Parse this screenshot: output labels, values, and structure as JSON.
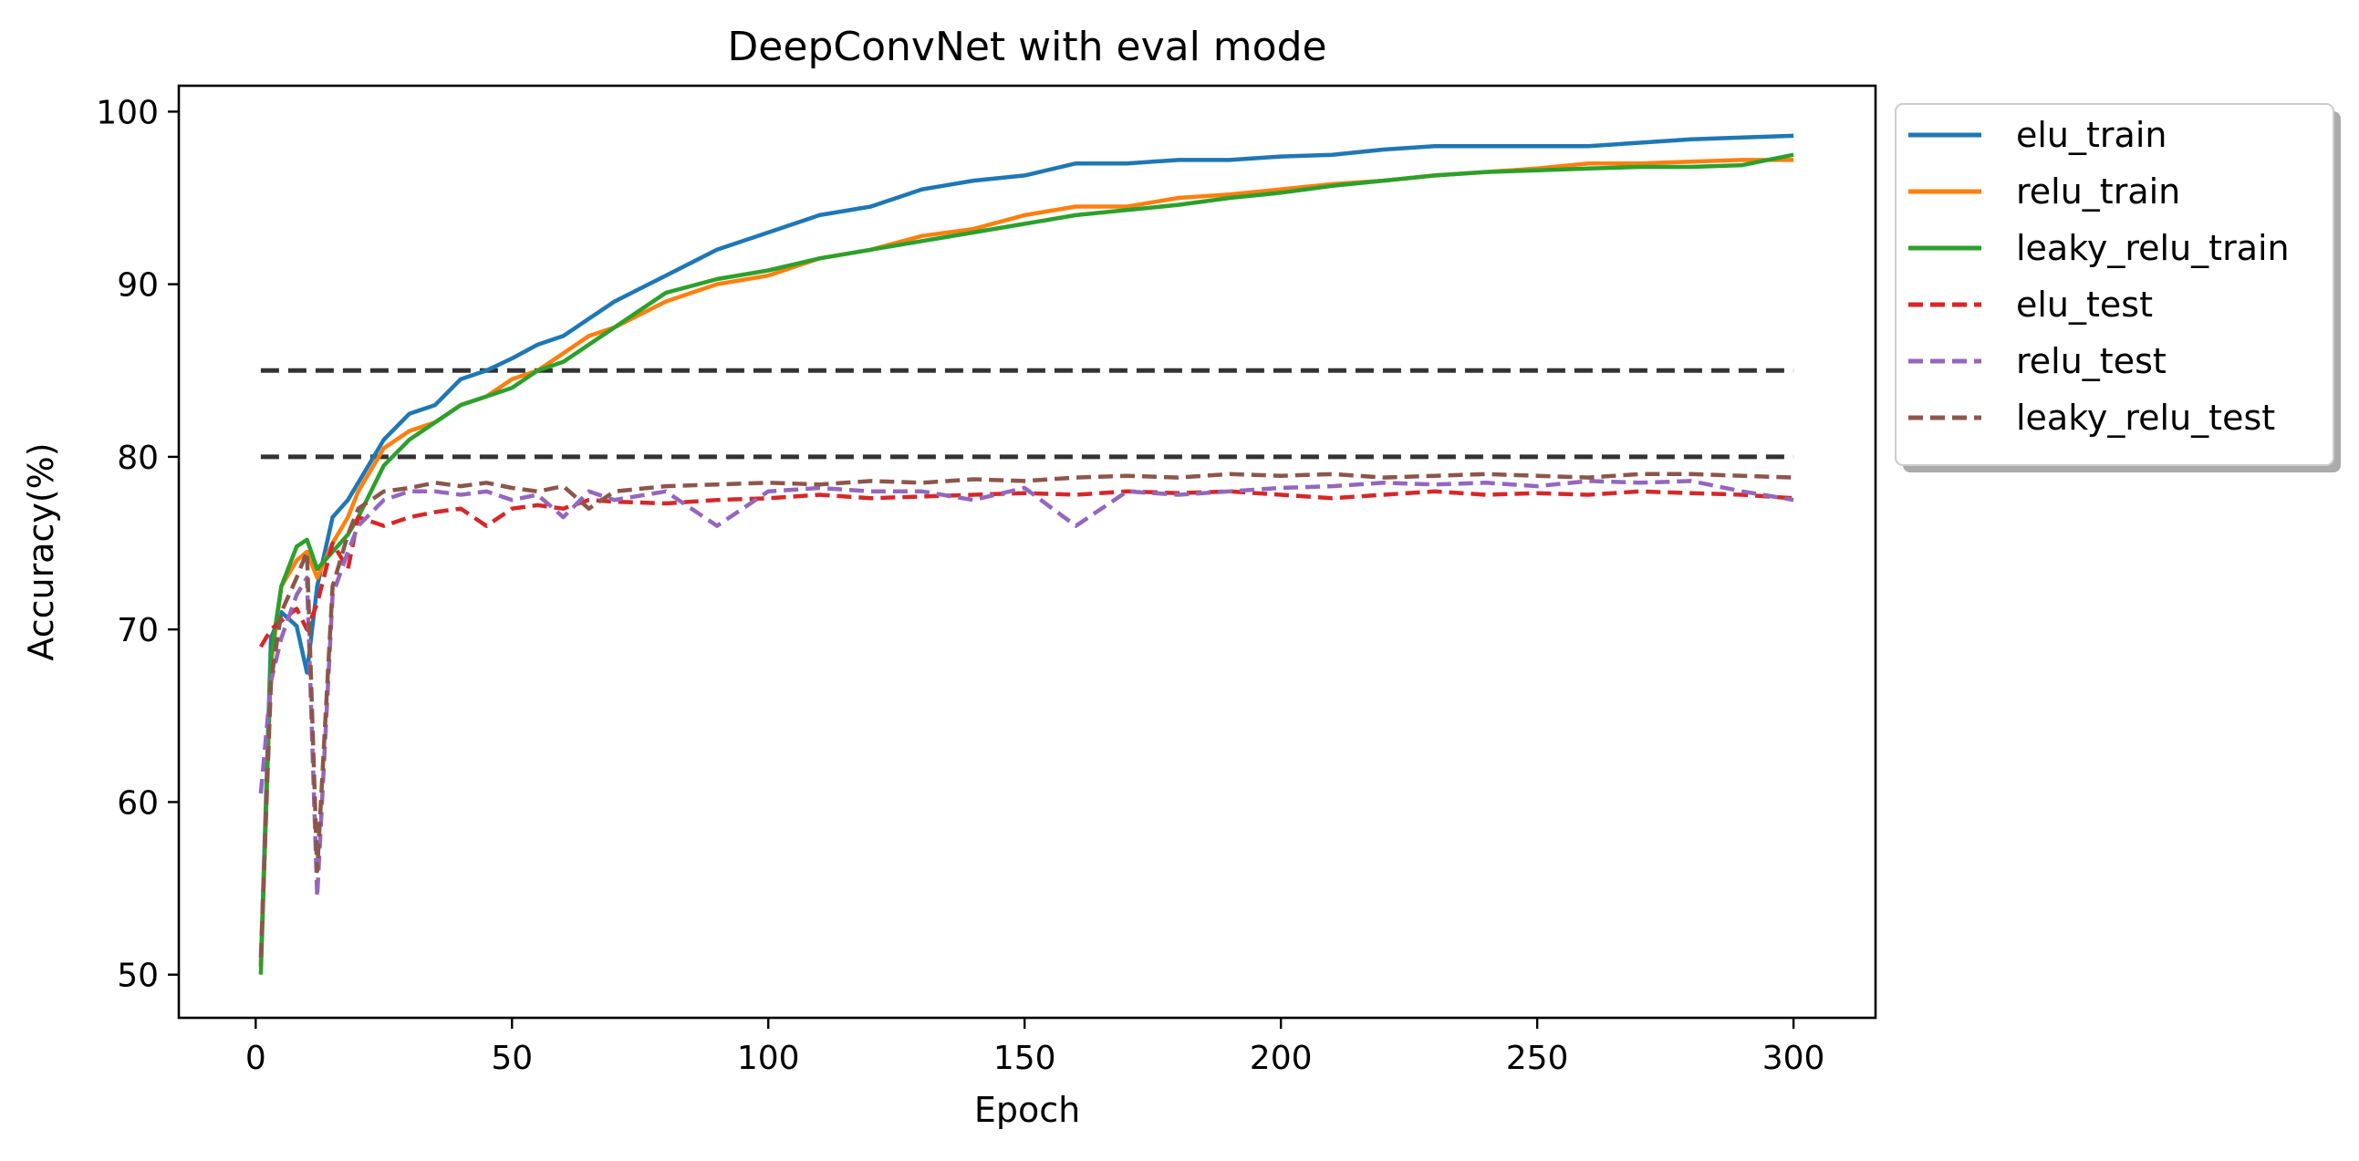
{
  "chart_data": {
    "type": "line",
    "title": "DeepConvNet with eval mode",
    "xlabel": "Epoch",
    "ylabel": "Accuracy(%)",
    "xlim": [
      -15,
      316
    ],
    "ylim": [
      47.5,
      101.5
    ],
    "xticks": [
      0,
      50,
      100,
      150,
      200,
      250,
      300
    ],
    "yticks": [
      50,
      60,
      70,
      80,
      90,
      100
    ],
    "grid": false,
    "legend_position": "outside-upper-right",
    "reference_lines": [
      {
        "y": 85,
        "style": "dashed",
        "color": "#333333"
      },
      {
        "y": 80,
        "style": "dashed",
        "color": "#333333"
      }
    ],
    "series": [
      {
        "name": "elu_train",
        "color": "#1f77b4",
        "style": "solid",
        "x": [
          1,
          3,
          5,
          8,
          10,
          12,
          15,
          18,
          20,
          25,
          30,
          35,
          40,
          45,
          50,
          55,
          60,
          65,
          70,
          80,
          90,
          100,
          110,
          120,
          130,
          140,
          150,
          160,
          170,
          180,
          190,
          200,
          210,
          220,
          230,
          240,
          250,
          260,
          270,
          280,
          290,
          300
        ],
        "y": [
          50.5,
          69.5,
          71,
          70.2,
          67.5,
          72.5,
          76.5,
          77.5,
          78.5,
          81,
          82.5,
          83,
          84.5,
          85,
          85.7,
          86.5,
          87,
          88,
          89,
          90.5,
          92,
          93,
          94,
          94.5,
          95.5,
          96,
          96.3,
          97,
          97,
          97.2,
          97.2,
          97.4,
          97.5,
          97.8,
          98,
          98,
          98,
          98,
          98.2,
          98.4,
          98.5,
          98.6
        ]
      },
      {
        "name": "relu_train",
        "color": "#ff7f0e",
        "style": "solid",
        "x": [
          1,
          3,
          5,
          8,
          10,
          12,
          15,
          18,
          20,
          25,
          30,
          35,
          40,
          45,
          50,
          55,
          60,
          65,
          70,
          80,
          90,
          100,
          110,
          120,
          130,
          140,
          150,
          160,
          170,
          180,
          190,
          200,
          210,
          220,
          230,
          240,
          250,
          260,
          270,
          280,
          290,
          300
        ],
        "y": [
          50.5,
          68,
          72.5,
          74,
          74.5,
          73,
          75,
          76.5,
          78,
          80.5,
          81.5,
          82,
          83,
          83.5,
          84.5,
          85,
          86,
          87,
          87.5,
          89,
          90,
          90.5,
          91.5,
          92,
          92.8,
          93.2,
          94,
          94.5,
          94.5,
          95,
          95.2,
          95.5,
          95.8,
          96,
          96.3,
          96.5,
          96.7,
          97,
          97,
          97.1,
          97.2,
          97.2
        ]
      },
      {
        "name": "leaky_relu_train",
        "color": "#2ca02c",
        "style": "solid",
        "x": [
          1,
          3,
          5,
          8,
          10,
          12,
          15,
          18,
          20,
          25,
          30,
          35,
          40,
          45,
          50,
          55,
          60,
          65,
          70,
          80,
          90,
          100,
          110,
          120,
          130,
          140,
          150,
          160,
          170,
          180,
          190,
          200,
          210,
          220,
          230,
          240,
          250,
          260,
          270,
          280,
          290,
          300
        ],
        "y": [
          50,
          68.5,
          72.5,
          74.8,
          75.2,
          73.5,
          74.5,
          75.5,
          76.5,
          79.5,
          81,
          82,
          83,
          83.5,
          84,
          85,
          85.5,
          86.5,
          87.5,
          89.5,
          90.3,
          90.8,
          91.5,
          92,
          92.5,
          93,
          93.5,
          94,
          94.3,
          94.6,
          95,
          95.3,
          95.7,
          96,
          96.3,
          96.5,
          96.6,
          96.7,
          96.8,
          96.8,
          96.9,
          97.5
        ]
      },
      {
        "name": "elu_test",
        "color": "#d62728",
        "style": "dashed",
        "x": [
          1,
          3,
          5,
          8,
          10,
          12,
          15,
          18,
          20,
          25,
          30,
          35,
          40,
          45,
          50,
          55,
          60,
          65,
          70,
          80,
          90,
          100,
          110,
          120,
          130,
          140,
          150,
          160,
          170,
          180,
          190,
          200,
          210,
          220,
          230,
          240,
          250,
          260,
          270,
          280,
          290,
          300
        ],
        "y": [
          69,
          70,
          70.5,
          71.2,
          70,
          71.5,
          75,
          73.5,
          76.5,
          76,
          76.5,
          76.8,
          77,
          76,
          77,
          77.2,
          77,
          77.5,
          77.4,
          77.3,
          77.5,
          77.6,
          77.8,
          77.6,
          77.7,
          77.8,
          77.9,
          77.8,
          78,
          77.9,
          78,
          77.8,
          77.6,
          77.8,
          78,
          77.8,
          77.9,
          77.8,
          78,
          77.9,
          77.8,
          77.6
        ]
      },
      {
        "name": "relu_test",
        "color": "#9467bd",
        "style": "dashed",
        "x": [
          1,
          3,
          5,
          8,
          10,
          12,
          15,
          18,
          20,
          25,
          30,
          35,
          40,
          45,
          50,
          55,
          60,
          65,
          70,
          80,
          90,
          100,
          110,
          120,
          130,
          140,
          150,
          160,
          170,
          180,
          190,
          200,
          210,
          220,
          230,
          240,
          250,
          260,
          270,
          280,
          290,
          300
        ],
        "y": [
          60.5,
          67,
          69.5,
          72,
          73,
          54.5,
          72,
          74.5,
          76,
          77.5,
          78,
          78,
          77.8,
          78,
          77.5,
          77.8,
          76.5,
          78,
          77.5,
          78,
          76,
          78,
          78.2,
          78,
          78,
          77.5,
          78.2,
          76,
          78,
          77.8,
          78,
          78.2,
          78.3,
          78.5,
          78.4,
          78.5,
          78.3,
          78.6,
          78.5,
          78.6,
          78,
          77.5
        ]
      },
      {
        "name": "leaky_relu_test",
        "color": "#8c564b",
        "style": "dashed",
        "x": [
          1,
          3,
          5,
          8,
          10,
          12,
          15,
          18,
          20,
          25,
          30,
          35,
          40,
          45,
          50,
          55,
          60,
          65,
          70,
          80,
          90,
          100,
          110,
          120,
          130,
          140,
          150,
          160,
          170,
          180,
          190,
          200,
          210,
          220,
          230,
          240,
          250,
          260,
          270,
          280,
          290,
          300
        ],
        "y": [
          51,
          67,
          71,
          73,
          74.5,
          56,
          72.5,
          75.5,
          77,
          78,
          78.2,
          78.5,
          78.3,
          78.5,
          78.2,
          78,
          78.3,
          77,
          78,
          78.3,
          78.4,
          78.5,
          78.4,
          78.6,
          78.5,
          78.7,
          78.6,
          78.8,
          78.9,
          78.8,
          79,
          78.9,
          79,
          78.8,
          78.9,
          79,
          78.9,
          78.8,
          79,
          79,
          78.9,
          78.8
        ]
      }
    ]
  }
}
